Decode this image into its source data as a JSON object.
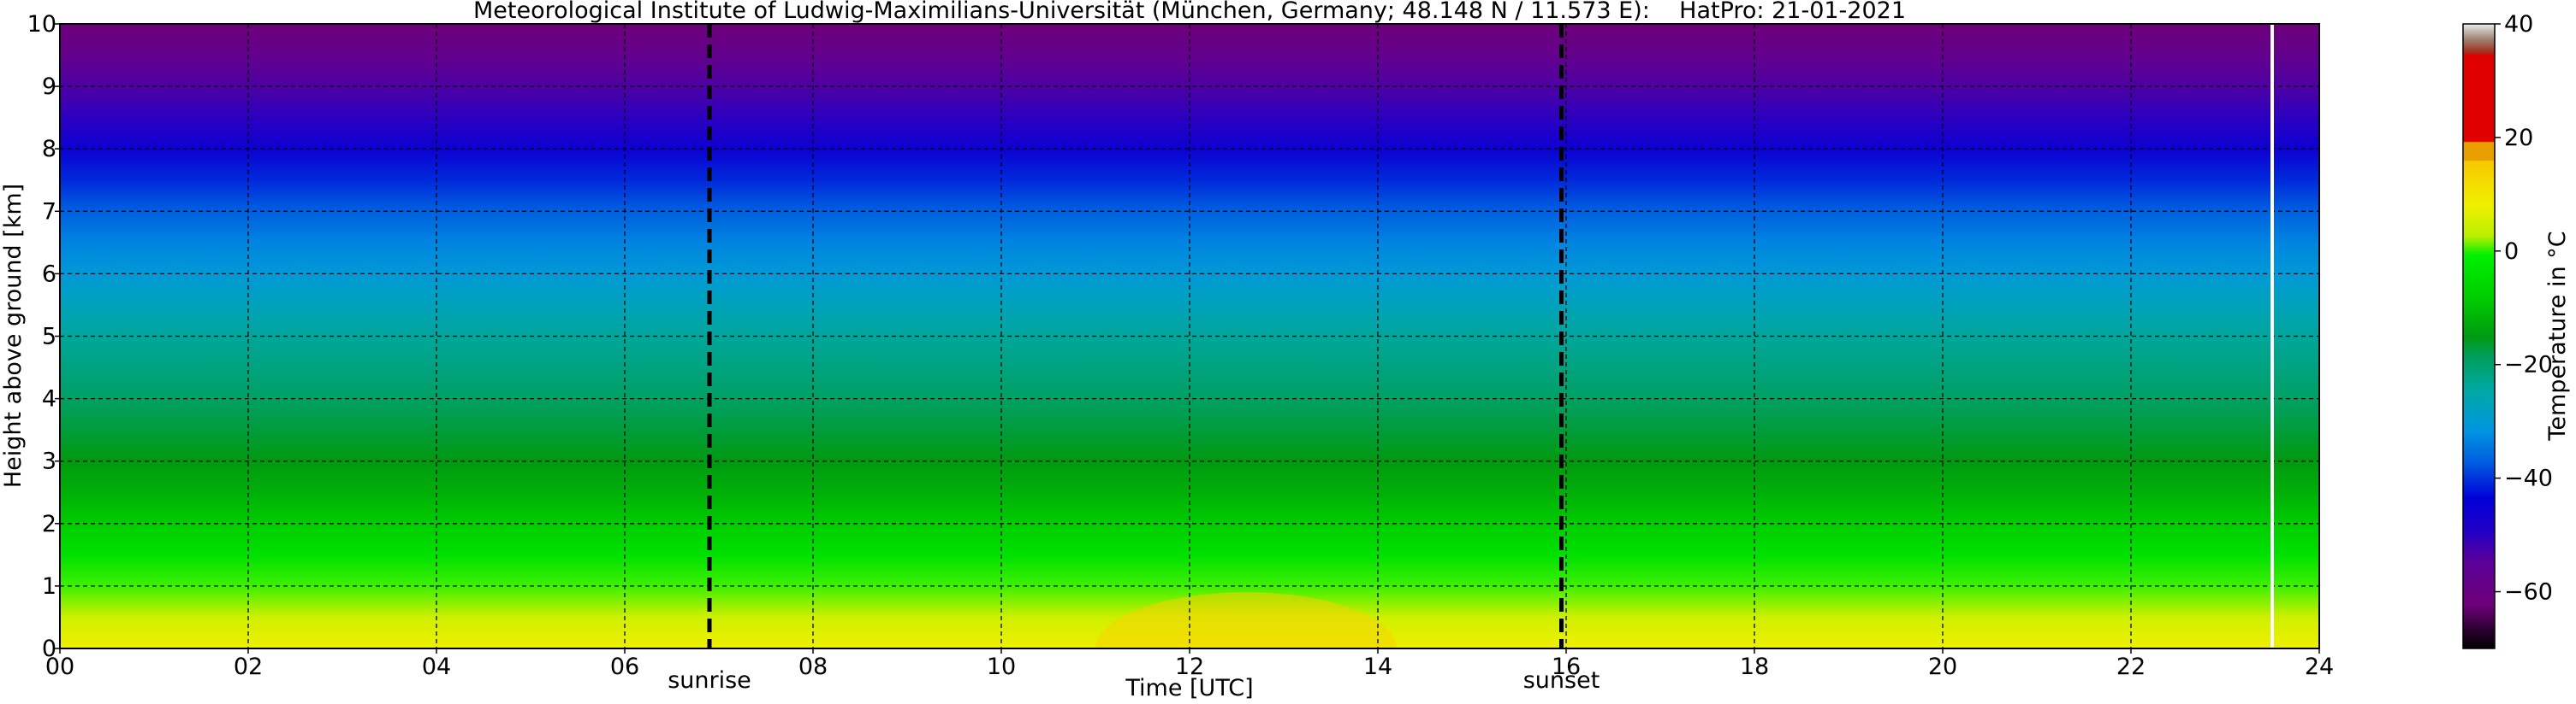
{
  "chart_data": {
    "type": "heatmap",
    "title": "Meteorological Institute of Ludwig-Maximilians-Universität (München, Germany; 48.148 N / 11.573 E):    HatPro: 21-01-2021",
    "xlabel": "Time [UTC]",
    "ylabel": "Height above ground [km]",
    "xlim": [
      0,
      24
    ],
    "ylim": [
      0,
      10
    ],
    "x_ticks": [
      0,
      2,
      4,
      6,
      8,
      10,
      12,
      14,
      16,
      18,
      20,
      22,
      24
    ],
    "x_tick_labels": [
      "00",
      "02",
      "04",
      "06",
      "08",
      "10",
      "12",
      "14",
      "16",
      "18",
      "20",
      "22",
      "24"
    ],
    "y_ticks": [
      0,
      1,
      2,
      3,
      4,
      5,
      6,
      7,
      8,
      9,
      10
    ],
    "y_tick_labels": [
      "0",
      "1",
      "2",
      "3",
      "4",
      "5",
      "6",
      "7",
      "8",
      "9",
      "10"
    ],
    "grid": true,
    "events": [
      {
        "label": "sunrise",
        "x": 6.9
      },
      {
        "label": "sunset",
        "x": 15.95
      }
    ],
    "data_end_marker_x": 23.5,
    "colorbar": {
      "label": "Temperature in °C",
      "range": [
        -70,
        40
      ],
      "ticks": [
        40,
        20,
        0,
        -20,
        -40,
        -60
      ],
      "tick_labels": [
        "40",
        "20",
        "0",
        "−20",
        "−40",
        "−60"
      ]
    },
    "heights_km": [
      0,
      0.5,
      1,
      1.5,
      2,
      2.5,
      3,
      3.5,
      4,
      4.5,
      5,
      5.5,
      6,
      6.5,
      7,
      7.5,
      8,
      8.5,
      9,
      9.5,
      10
    ],
    "temperature_profile_c": [
      7,
      4,
      0,
      -4,
      -8,
      -12,
      -15,
      -18,
      -21,
      -23,
      -25,
      -28,
      -31,
      -34,
      -38,
      -42,
      -47,
      -51,
      -54,
      -58,
      -62
    ],
    "midday_surface_temperature_c": 12
  },
  "colors": {
    "sunrise_sunset_line": "#000000",
    "data_end_line": "#ffffff"
  }
}
